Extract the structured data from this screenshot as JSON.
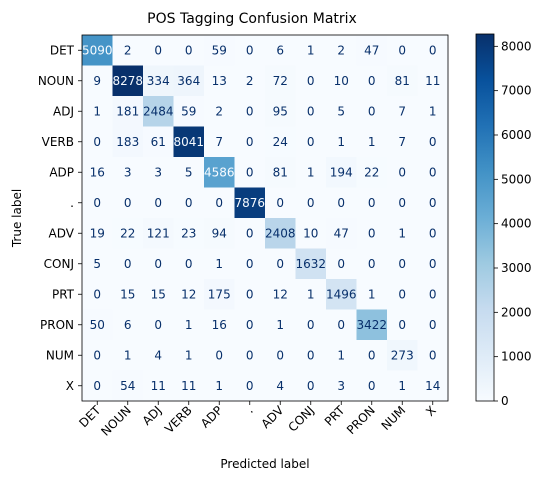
{
  "chart_data": {
    "type": "heatmap",
    "title": "POS Tagging Confusion Matrix",
    "xlabel": "Predicted label",
    "ylabel": "True label",
    "labels": [
      "DET",
      "NOUN",
      "ADJ",
      "VERB",
      "ADP",
      ".",
      "ADV",
      "CONJ",
      "PRT",
      "PRON",
      "NUM",
      "X"
    ],
    "matrix": [
      [
        5090,
        2,
        0,
        0,
        59,
        0,
        6,
        1,
        2,
        47,
        0,
        0
      ],
      [
        9,
        8278,
        334,
        364,
        13,
        2,
        72,
        0,
        10,
        0,
        81,
        11
      ],
      [
        1,
        181,
        2484,
        59,
        2,
        0,
        95,
        0,
        5,
        0,
        7,
        1
      ],
      [
        0,
        183,
        61,
        8041,
        7,
        0,
        24,
        0,
        1,
        1,
        7,
        0
      ],
      [
        16,
        3,
        3,
        5,
        4586,
        0,
        81,
        1,
        194,
        22,
        0,
        0
      ],
      [
        0,
        0,
        0,
        0,
        0,
        7876,
        0,
        0,
        0,
        0,
        0,
        0
      ],
      [
        19,
        22,
        121,
        23,
        94,
        0,
        2408,
        10,
        47,
        0,
        1,
        0
      ],
      [
        5,
        0,
        0,
        0,
        1,
        0,
        0,
        1632,
        0,
        0,
        0,
        0
      ],
      [
        0,
        15,
        15,
        12,
        175,
        0,
        12,
        1,
        1496,
        1,
        0,
        0
      ],
      [
        50,
        6,
        0,
        1,
        16,
        0,
        1,
        0,
        0,
        3422,
        0,
        0
      ],
      [
        0,
        1,
        4,
        1,
        0,
        0,
        0,
        0,
        1,
        0,
        273,
        0
      ],
      [
        0,
        54,
        11,
        11,
        1,
        0,
        4,
        0,
        3,
        0,
        1,
        14
      ]
    ],
    "colormap": "Blues",
    "value_range": [
      0,
      8278
    ],
    "colorbar_ticks": [
      0,
      1000,
      2000,
      3000,
      4000,
      5000,
      6000,
      7000,
      8000
    ],
    "grid": false
  }
}
